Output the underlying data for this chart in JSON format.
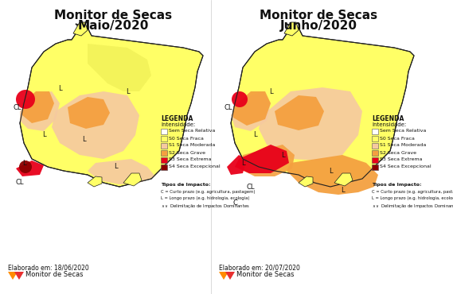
{
  "title_left": "Monitor de Secas\nMaio/2020",
  "title_right": "Monitor de Secas\nJunho/2020",
  "elaborado_left": "Elaborado em: 18/06/2020",
  "elaborado_right": "Elaborado em: 20/07/2020",
  "monitor_label": "Monitor de Secas",
  "legend_title": "LEGENDA\nIntensidade:",
  "legend_items": [
    {
      "label": "Sem Seca Relativa",
      "color": "#ffffff"
    },
    {
      "label": "S0 Seca Fraca",
      "color": "#ffff00"
    },
    {
      "label": "S1 Seca Moderada",
      "color": "#f5deb3"
    },
    {
      "label": "S2 Seca Grave",
      "color": "#f4a460"
    },
    {
      "label": "S3 Seca Extrema",
      "color": "#ff0000"
    },
    {
      "label": "S4 Seca Excepcional",
      "color": "#8b0000"
    }
  ],
  "tipos_impacto_title": "Tipos de Impacto:",
  "tipos_impacto": [
    "C = Curto prazo (e.g. agricultura, pastagem)",
    "L = Longo prazo (e.g. hidrologia, ecologia)",
    "∧∨ Delimitação de Impactos Dominantes"
  ],
  "bg_color": "#ffffff",
  "map_border_color": "#000000",
  "map_fill_yellow": "#ffff66",
  "map_fill_peach": "#f5c9a0",
  "map_fill_orange": "#f4a040",
  "map_fill_red": "#e8001a",
  "map_fill_darkred": "#8b0000",
  "map_outline": "#333333"
}
